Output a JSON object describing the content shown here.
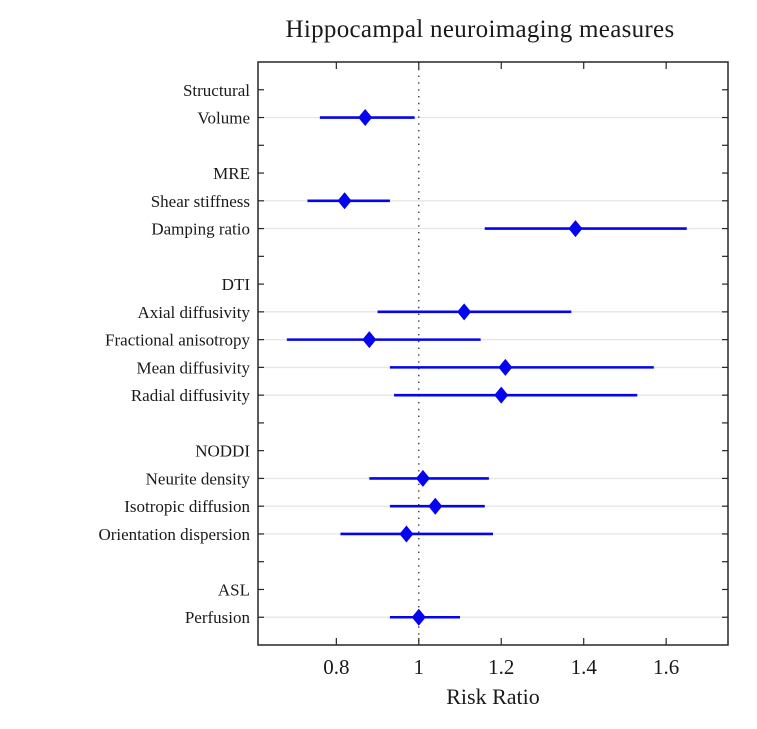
{
  "chart_data": {
    "type": "forest",
    "title": "Hippocampal neuroimaging measures",
    "xlabel": "Risk Ratio",
    "xlim": [
      0.61,
      1.75
    ],
    "xticks": [
      0.8,
      1.0,
      1.2,
      1.4,
      1.6
    ],
    "xtick_labels": [
      "0.8",
      "1",
      "1.2",
      "1.4",
      "1.6"
    ],
    "reference_line": 1.0,
    "grid": "horizontal-on-data-rows",
    "legend": "none",
    "colors": {
      "series": "#0404ee",
      "axis": "#262626",
      "grid": "#e7e7e7",
      "reference": "#1a1a1a",
      "background": "#ffffff"
    },
    "rows": [
      {
        "label": "Structural",
        "type": "header"
      },
      {
        "label": "Volume",
        "type": "data",
        "estimate": 0.87,
        "ci_low": 0.76,
        "ci_high": 0.99
      },
      {
        "label": "",
        "type": "spacer"
      },
      {
        "label": "MRE",
        "type": "header"
      },
      {
        "label": "Shear stiffness",
        "type": "data",
        "estimate": 0.82,
        "ci_low": 0.73,
        "ci_high": 0.93
      },
      {
        "label": "Damping ratio",
        "type": "data",
        "estimate": 1.38,
        "ci_low": 1.16,
        "ci_high": 1.65
      },
      {
        "label": "",
        "type": "spacer"
      },
      {
        "label": "DTI",
        "type": "header"
      },
      {
        "label": "Axial diffusivity",
        "type": "data",
        "estimate": 1.11,
        "ci_low": 0.9,
        "ci_high": 1.37
      },
      {
        "label": "Fractional anisotropy",
        "type": "data",
        "estimate": 0.88,
        "ci_low": 0.68,
        "ci_high": 1.15
      },
      {
        "label": "Mean diffusivity",
        "type": "data",
        "estimate": 1.21,
        "ci_low": 0.93,
        "ci_high": 1.57
      },
      {
        "label": "Radial diffusivity",
        "type": "data",
        "estimate": 1.2,
        "ci_low": 0.94,
        "ci_high": 1.53
      },
      {
        "label": "",
        "type": "spacer"
      },
      {
        "label": "NODDI",
        "type": "header"
      },
      {
        "label": "Neurite density",
        "type": "data",
        "estimate": 1.01,
        "ci_low": 0.88,
        "ci_high": 1.17
      },
      {
        "label": "Isotropic diffusion",
        "type": "data",
        "estimate": 1.04,
        "ci_low": 0.93,
        "ci_high": 1.16
      },
      {
        "label": "Orientation dispersion",
        "type": "data",
        "estimate": 0.97,
        "ci_low": 0.81,
        "ci_high": 1.18
      },
      {
        "label": "",
        "type": "spacer"
      },
      {
        "label": "ASL",
        "type": "header"
      },
      {
        "label": "Perfusion",
        "type": "data",
        "estimate": 1.0,
        "ci_low": 0.93,
        "ci_high": 1.1
      }
    ]
  }
}
